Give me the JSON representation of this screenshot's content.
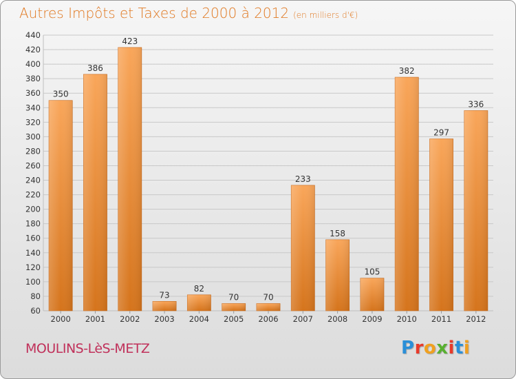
{
  "header": {
    "title": "Autres Impôts et Taxes de 2000 à 2012",
    "unit": "(en milliers d'€)"
  },
  "footer": {
    "city": "MOULINS-LèS-METZ",
    "logo_letters": [
      "P",
      "r",
      "o",
      "x",
      "i",
      "t",
      "i"
    ],
    "logo_colors": [
      "#2a8fd8",
      "#e83a2a",
      "#f0a020",
      "#58b030",
      "#e83a2a",
      "#2a8fd8",
      "#f0a020"
    ]
  },
  "chart_data": {
    "type": "bar",
    "categories": [
      "2000",
      "2001",
      "2002",
      "2003",
      "2004",
      "2005",
      "2006",
      "2007",
      "2008",
      "2009",
      "2010",
      "2011",
      "2012"
    ],
    "values": [
      350,
      386,
      423,
      73,
      82,
      70,
      70,
      233,
      158,
      105,
      382,
      297,
      336
    ],
    "ylim": [
      60,
      440
    ],
    "yticks": [
      60,
      80,
      100,
      120,
      140,
      160,
      180,
      200,
      220,
      240,
      260,
      280,
      300,
      320,
      340,
      360,
      380,
      400,
      420,
      440
    ],
    "grid": true,
    "bar_color_top": "#f9a65a",
    "bar_color_bottom": "#d5741c"
  }
}
